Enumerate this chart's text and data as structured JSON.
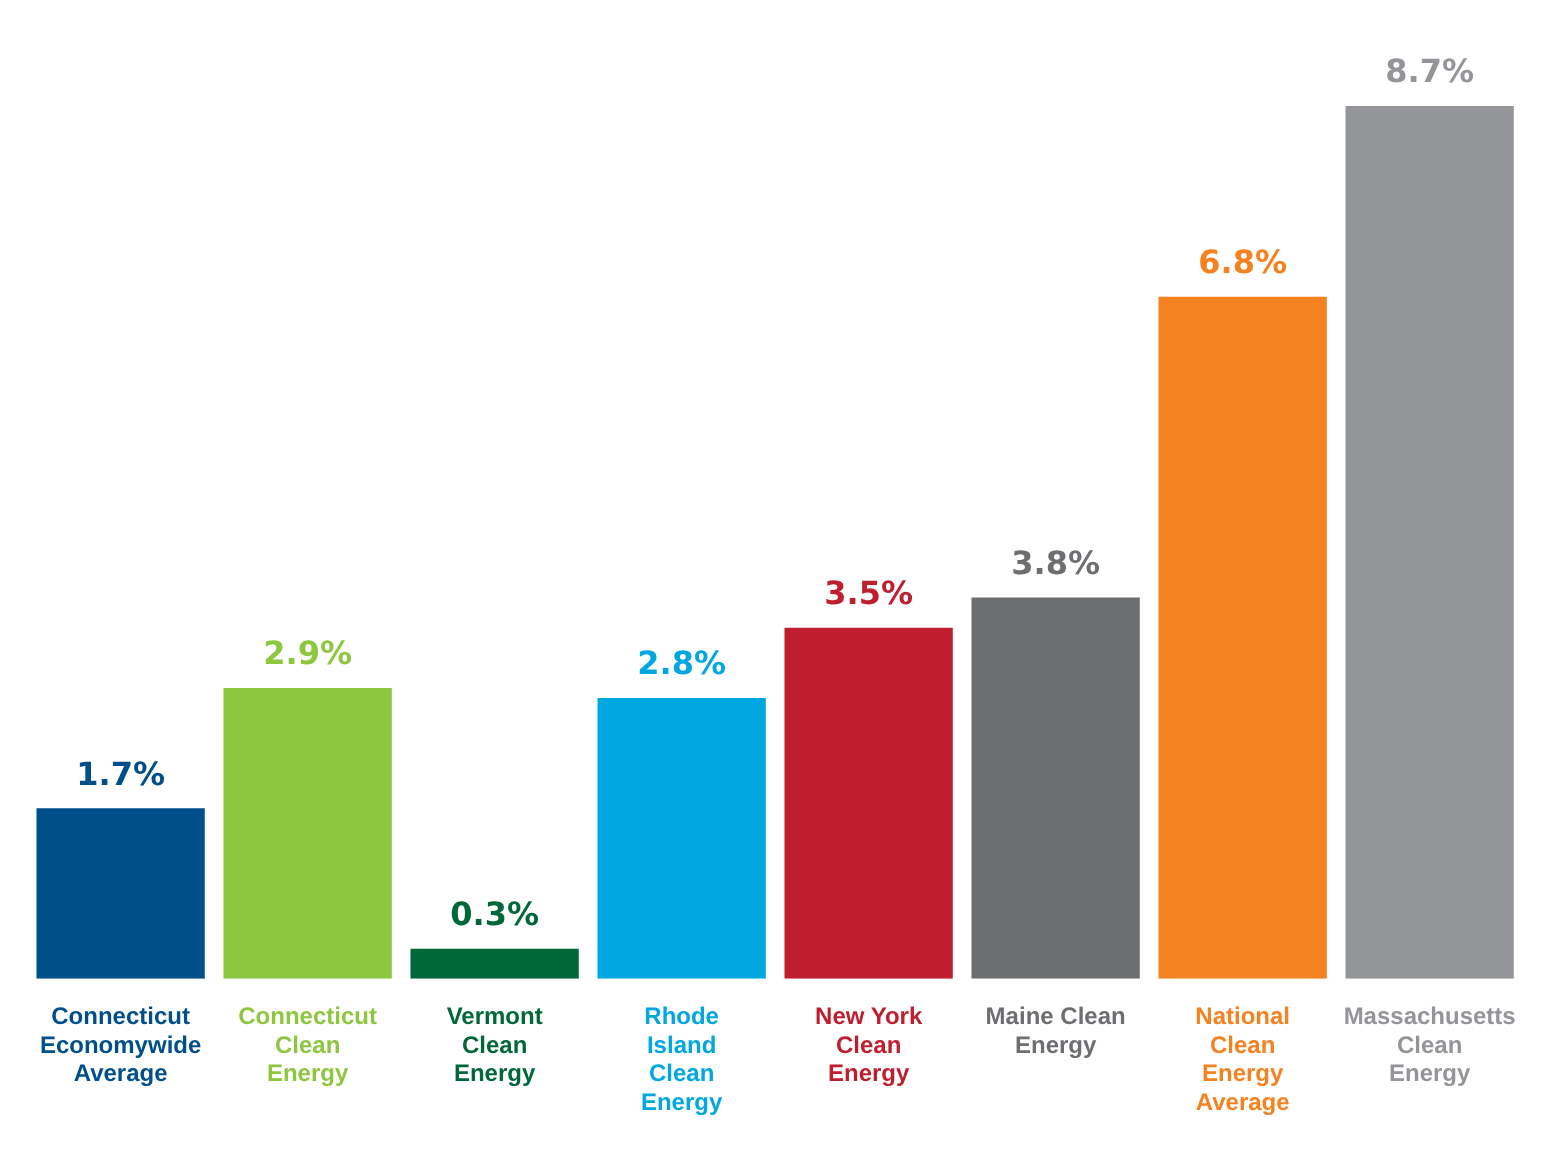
{
  "chart_data": {
    "type": "bar",
    "categories": [
      "Connecticut Economywide Average",
      "Connecticut Clean Energy",
      "Vermont Clean Energy",
      "Rhode Island Clean Energy",
      "New York Clean Energy",
      "Maine Clean Energy",
      "National Clean Energy Average",
      "Massachusetts Clean Energy"
    ],
    "values": [
      1.7,
      2.9,
      0.3,
      2.8,
      3.5,
      3.8,
      6.8,
      8.7
    ],
    "colors": [
      "#004f8b",
      "#8dc63f",
      "#006838",
      "#00a7e1",
      "#be1e2d",
      "#6d6e71",
      "#f58220",
      "#939598"
    ],
    "value_labels": [
      "1.7%",
      "2.9%",
      "0.3%",
      "2.8%",
      "3.5%",
      "3.8%",
      "6.8%",
      "8.7%"
    ],
    "grid": false,
    "legend": false
  }
}
